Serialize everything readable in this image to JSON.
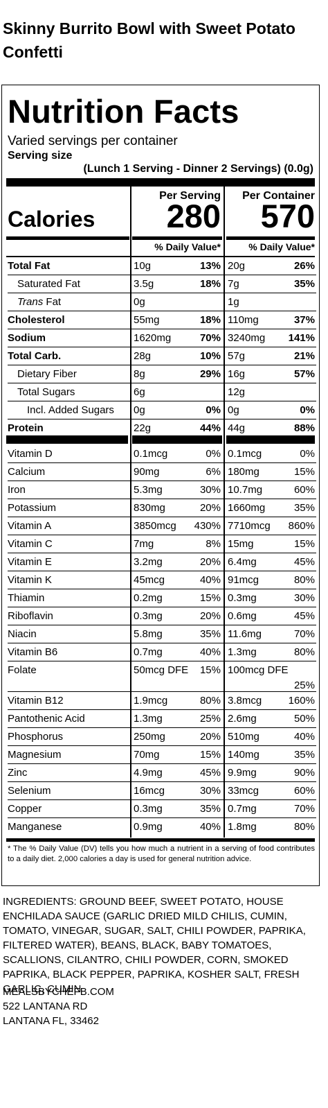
{
  "title": "Skinny Burrito Bowl with Sweet Potato Confetti",
  "label": {
    "heading": "Nutrition Facts",
    "servings_per_container": "Varied servings per container",
    "serving_size_label": "Serving size",
    "serving_size_value": "(Lunch 1 Serving - Dinner 2 Servings) (0.0g)",
    "per_serving_label": "Per Serving",
    "per_container_label": "Per Container",
    "calories_label": "Calories",
    "calories_per_serving": "280",
    "calories_per_container": "570",
    "dv_header": "% Daily Value*",
    "macros": [
      {
        "name": "Total Fat",
        "ps_amt": "10g",
        "ps_dv": "13%",
        "pc_amt": "20g",
        "pc_dv": "26%"
      },
      {
        "name": "Saturated Fat",
        "ps_amt": "3.5g",
        "ps_dv": "18%",
        "pc_amt": "7g",
        "pc_dv": "35%"
      },
      {
        "name_italic": "Trans",
        "name": " Fat",
        "ps_amt": "0g",
        "ps_dv": "",
        "pc_amt": "1g",
        "pc_dv": ""
      },
      {
        "name": "Cholesterol",
        "ps_amt": "55mg",
        "ps_dv": "18%",
        "pc_amt": "110mg",
        "pc_dv": "37%"
      },
      {
        "name": "Sodium",
        "ps_amt": "1620mg",
        "ps_dv": "70%",
        "pc_amt": "3240mg",
        "pc_dv": "141%"
      },
      {
        "name": "Total Carb.",
        "ps_amt": "28g",
        "ps_dv": "10%",
        "pc_amt": "57g",
        "pc_dv": "21%"
      },
      {
        "name": "Dietary Fiber",
        "ps_amt": "8g",
        "ps_dv": "29%",
        "pc_amt": "16g",
        "pc_dv": "57%"
      },
      {
        "name": "Total Sugars",
        "ps_amt": "6g",
        "ps_dv": "",
        "pc_amt": "12g",
        "pc_dv": ""
      },
      {
        "name": "Incl. Added Sugars",
        "ps_amt": "0g",
        "ps_dv": "0%",
        "pc_amt": "0g",
        "pc_dv": "0%"
      },
      {
        "name": "Protein",
        "ps_amt": "22g",
        "ps_dv": "44%",
        "pc_amt": "44g",
        "pc_dv": "88%"
      }
    ],
    "micros": [
      {
        "name": "Vitamin D",
        "ps_amt": "0.1mcg",
        "ps_dv": "0%",
        "pc_amt": "0.1mcg",
        "pc_dv": "0%"
      },
      {
        "name": "Calcium",
        "ps_amt": "90mg",
        "ps_dv": "6%",
        "pc_amt": "180mg",
        "pc_dv": "15%"
      },
      {
        "name": "Iron",
        "ps_amt": "5.3mg",
        "ps_dv": "30%",
        "pc_amt": "10.7mg",
        "pc_dv": "60%"
      },
      {
        "name": "Potassium",
        "ps_amt": "830mg",
        "ps_dv": "20%",
        "pc_amt": "1660mg",
        "pc_dv": "35%"
      },
      {
        "name": "Vitamin A",
        "ps_amt": "3850mcg",
        "ps_dv": "430%",
        "pc_amt": "7710mcg",
        "pc_dv": "860%"
      },
      {
        "name": "Vitamin C",
        "ps_amt": "7mg",
        "ps_dv": "8%",
        "pc_amt": "15mg",
        "pc_dv": "15%"
      },
      {
        "name": "Vitamin E",
        "ps_amt": "3.2mg",
        "ps_dv": "20%",
        "pc_amt": "6.4mg",
        "pc_dv": "45%"
      },
      {
        "name": "Vitamin K",
        "ps_amt": "45mcg",
        "ps_dv": "40%",
        "pc_amt": "91mcg",
        "pc_dv": "80%"
      },
      {
        "name": "Thiamin",
        "ps_amt": "0.2mg",
        "ps_dv": "15%",
        "pc_amt": "0.3mg",
        "pc_dv": "30%"
      },
      {
        "name": "Riboflavin",
        "ps_amt": "0.3mg",
        "ps_dv": "20%",
        "pc_amt": "0.6mg",
        "pc_dv": "45%"
      },
      {
        "name": "Niacin",
        "ps_amt": "5.8mg",
        "ps_dv": "35%",
        "pc_amt": "11.6mg",
        "pc_dv": "70%"
      },
      {
        "name": "Vitamin B6",
        "ps_amt": "0.7mg",
        "ps_dv": "40%",
        "pc_amt": "1.3mg",
        "pc_dv": "80%"
      },
      {
        "name": "Folate",
        "ps_amt": "50mcg DFE",
        "ps_dv": "15%",
        "pc_amt": "100mcg DFE",
        "pc_dv": "25%"
      },
      {
        "name": "Vitamin B12",
        "ps_amt": "1.9mcg",
        "ps_dv": "80%",
        "pc_amt": "3.8mcg",
        "pc_dv": "160%"
      },
      {
        "name": "Pantothenic Acid",
        "ps_amt": "1.3mg",
        "ps_dv": "25%",
        "pc_amt": "2.6mg",
        "pc_dv": "50%"
      },
      {
        "name": "Phosphorus",
        "ps_amt": "250mg",
        "ps_dv": "20%",
        "pc_amt": "510mg",
        "pc_dv": "40%"
      },
      {
        "name": "Magnesium",
        "ps_amt": "70mg",
        "ps_dv": "15%",
        "pc_amt": "140mg",
        "pc_dv": "35%"
      },
      {
        "name": "Zinc",
        "ps_amt": "4.9mg",
        "ps_dv": "45%",
        "pc_amt": "9.9mg",
        "pc_dv": "90%"
      },
      {
        "name": "Selenium",
        "ps_amt": "16mcg",
        "ps_dv": "30%",
        "pc_amt": "33mcg",
        "pc_dv": "60%"
      },
      {
        "name": "Copper",
        "ps_amt": "0.3mg",
        "ps_dv": "35%",
        "pc_amt": "0.7mg",
        "pc_dv": "70%"
      },
      {
        "name": "Manganese",
        "ps_amt": "0.9mg",
        "ps_dv": "40%",
        "pc_amt": "1.8mg",
        "pc_dv": "80%"
      }
    ],
    "footnote": "* The % Daily Value (DV) tells you how much a nutrient in a serving of food contributes to a daily diet. 2,000 calories a day is used for general nutrition advice."
  },
  "ingredients": "INGREDIENTS: GROUND BEEF, SWEET POTATO, HOUSE ENCHILADA SAUCE (GARLIC DRIED MILD CHILIS, CUMIN, TOMATO, VINEGAR, SUGAR, SALT, CHILI POWDER, PAPRIKA, FILTERED WATER), BEANS, BLACK, BABY TOMATOES, SCALLIONS, CILANTRO, CHILI POWDER, CORN, SMOKED PAPRIKA, BLACK PEPPER, PAPRIKA, KOSHER SALT, FRESH GARLIC, CUMIN",
  "address": {
    "website": "MEALSBYCHEFB.COM",
    "street": "522 LANTANA RD",
    "city": "LANTANA FL, 33462"
  }
}
